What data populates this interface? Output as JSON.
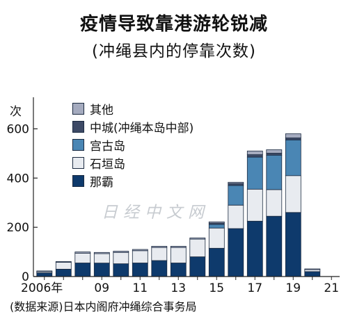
{
  "title": "疫情导致靠港游轮锐减",
  "subtitle": "(冲绳县内的停靠次数)",
  "unit_label": "次",
  "source": "(数据来源)日本内阁府冲绳综合事务局",
  "watermark": "日经中文网",
  "colors": {
    "其他": "#a5abbf",
    "中城": "#3d4a66",
    "宫古岛": "#4a86b4",
    "石垣岛": "#e8ebf0",
    "那霸": "#0e3a6c",
    "axis": "#222222"
  },
  "chart_data": {
    "type": "bar",
    "stacked": true,
    "title": "疫情导致靠港游轮锐减",
    "subtitle": "(冲绳县内的停靠次数)",
    "ylabel": "次",
    "ylim": [
      0,
      700
    ],
    "yticks": [
      0,
      200,
      400,
      600
    ],
    "xtick_labels": [
      {
        "year": 2006,
        "label": "2006年"
      },
      {
        "year": 2009,
        "label": "09"
      },
      {
        "year": 2011,
        "label": "11"
      },
      {
        "year": 2013,
        "label": "13"
      },
      {
        "year": 2015,
        "label": "15"
      },
      {
        "year": 2017,
        "label": "17"
      },
      {
        "year": 2019,
        "label": "19"
      },
      {
        "year": 2021,
        "label": "21"
      }
    ],
    "categories": [
      2006,
      2007,
      2008,
      2009,
      2010,
      2011,
      2012,
      2013,
      2014,
      2015,
      2016,
      2017,
      2018,
      2019,
      2020
    ],
    "series": [
      {
        "name": "那霸",
        "values": [
          15,
          30,
          55,
          55,
          52,
          55,
          65,
          55,
          80,
          115,
          195,
          225,
          245,
          260,
          20
        ]
      },
      {
        "name": "石垣岛",
        "values": [
          5,
          28,
          40,
          38,
          46,
          50,
          53,
          63,
          72,
          82,
          95,
          130,
          108,
          150,
          8
        ]
      },
      {
        "name": "宫古岛",
        "values": [
          0,
          0,
          0,
          0,
          0,
          0,
          0,
          0,
          0,
          15,
          80,
          130,
          140,
          145,
          0
        ]
      },
      {
        "name": "中城",
        "values": [
          0,
          0,
          0,
          0,
          0,
          0,
          0,
          0,
          0,
          5,
          8,
          10,
          8,
          8,
          0
        ]
      },
      {
        "name": "其他",
        "values": [
          3,
          3,
          5,
          5,
          5,
          5,
          5,
          5,
          5,
          5,
          5,
          15,
          14,
          17,
          3
        ]
      }
    ],
    "legend_order": [
      "其他",
      "中城",
      "宫古岛",
      "石垣岛",
      "那霸"
    ],
    "legend_position": "top-left",
    "grid": false
  }
}
